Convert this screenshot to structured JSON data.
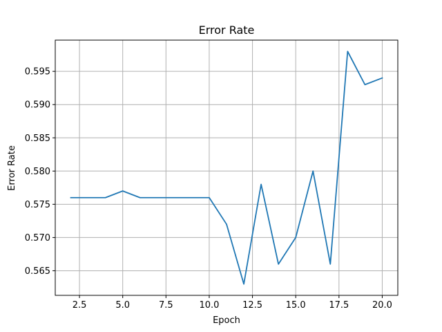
{
  "chart_data": {
    "type": "line",
    "title": "Error Rate",
    "xlabel": "Epoch",
    "ylabel": "Error Rate",
    "grid": true,
    "xlim": [
      1.1,
      20.9
    ],
    "ylim": [
      0.5613,
      0.5997
    ],
    "xticks": [
      2.5,
      5.0,
      7.5,
      10.0,
      12.5,
      15.0,
      17.5,
      20.0
    ],
    "xtick_labels": [
      "2.5",
      "5.0",
      "7.5",
      "10.0",
      "12.5",
      "15.0",
      "17.5",
      "20.0"
    ],
    "yticks": [
      0.565,
      0.57,
      0.575,
      0.58,
      0.585,
      0.59,
      0.595
    ],
    "ytick_labels": [
      "0.565",
      "0.570",
      "0.575",
      "0.580",
      "0.585",
      "0.590",
      "0.595"
    ],
    "series": [
      {
        "color": "#1f77b4",
        "x": [
          2,
          3,
          4,
          5,
          6,
          7,
          8,
          9,
          10,
          11,
          12,
          13,
          14,
          15,
          16,
          17,
          18,
          19,
          20
        ],
        "y": [
          0.576,
          0.576,
          0.576,
          0.577,
          0.576,
          0.576,
          0.576,
          0.576,
          0.576,
          0.572,
          0.563,
          0.578,
          0.566,
          0.57,
          0.58,
          0.566,
          0.598,
          0.593,
          0.594
        ]
      }
    ]
  }
}
